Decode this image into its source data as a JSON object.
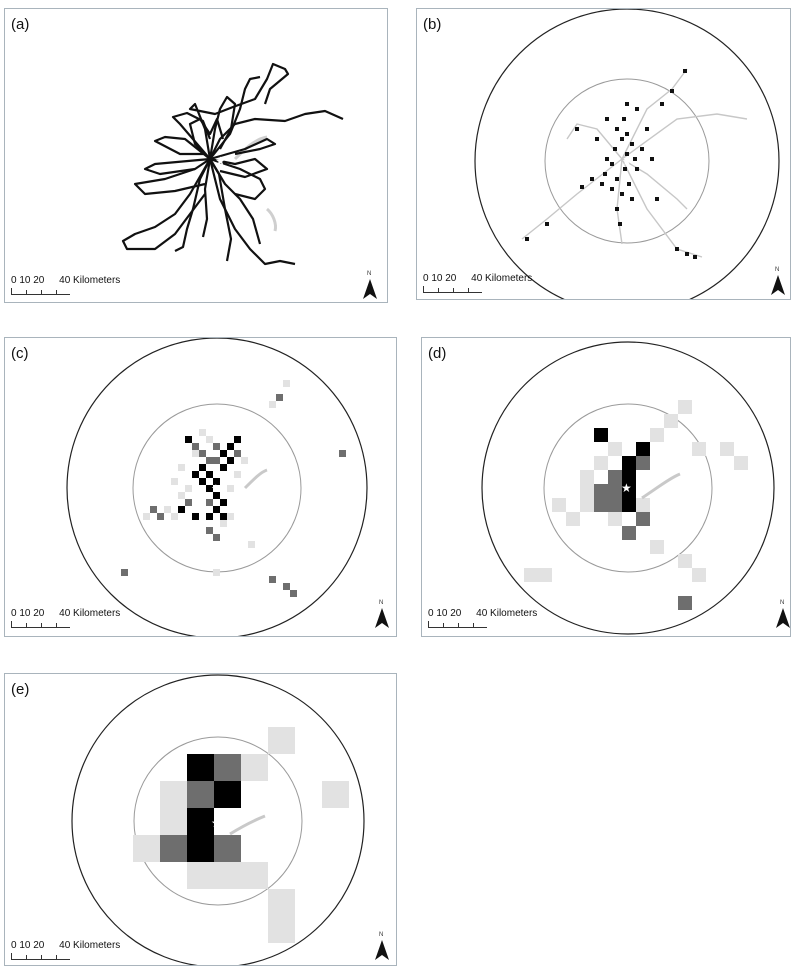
{
  "panels": [
    {
      "label": "(a)",
      "scale_numbers": "0 10 20",
      "scale_text": "40 Kilometers",
      "north": "N"
    },
    {
      "label": "(b)",
      "scale_numbers": "0 10 20",
      "scale_text": "40 Kilometers",
      "north": "N"
    },
    {
      "label": "(c)",
      "scale_numbers": "0 10 20",
      "scale_text": "40 Kilometers",
      "north": "N"
    },
    {
      "label": "(d)",
      "scale_numbers": "0 10 20",
      "scale_text": "40 Kilometers",
      "north": "N"
    },
    {
      "label": "(e)",
      "scale_numbers": "0 10 20",
      "scale_text": "40 Kilometers",
      "north": "N"
    }
  ],
  "colors": {
    "border": "#a9b4bc",
    "track": "#111111",
    "inner_ring": "#9a9a9a",
    "outer_ring": "#222222",
    "high": "#000000",
    "mid": "#6e6e6e",
    "low": "#e2e2e2",
    "water": "#c9c9c9"
  }
}
